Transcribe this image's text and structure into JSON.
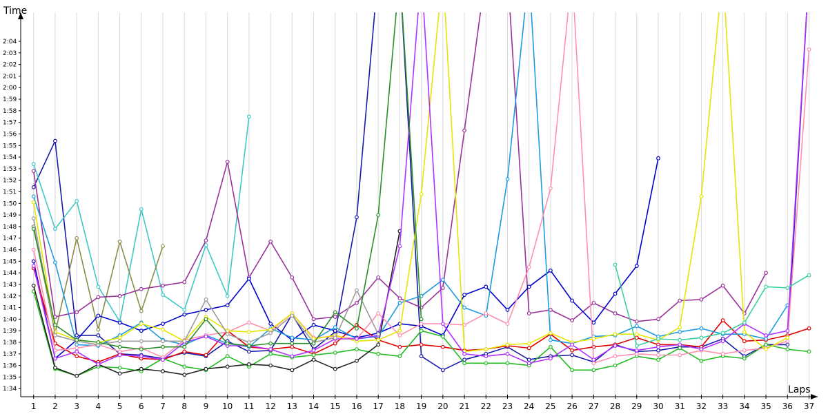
{
  "chart_data": {
    "type": "line",
    "ylabel": "Time",
    "xlabel": "Laps",
    "x": [
      1,
      2,
      3,
      4,
      5,
      6,
      7,
      8,
      9,
      10,
      11,
      12,
      13,
      14,
      15,
      16,
      17,
      18,
      19,
      20,
      21,
      22,
      23,
      24,
      25,
      26,
      27,
      28,
      29,
      30,
      31,
      32,
      33,
      34,
      35,
      36,
      37
    ],
    "x_tick_labels": [
      "1",
      "2",
      "3",
      "4",
      "5",
      "6",
      "7",
      "8",
      "9",
      "10",
      "11",
      "12",
      "13",
      "14",
      "15",
      "16",
      "17",
      "18",
      "19",
      "20",
      "21",
      "22",
      "23",
      "24",
      "25",
      "26",
      "27",
      "28",
      "29",
      "30",
      "31",
      "32",
      "33",
      "34",
      "35",
      "36",
      "37"
    ],
    "y_tick_labels": [
      "1:34",
      "1:35",
      "1:36",
      "1:37",
      "1:38",
      "1:39",
      "1:40",
      "1:41",
      "1:42",
      "1:43",
      "1:44",
      "1:45",
      "1:46",
      "1:47",
      "1:48",
      "1:49",
      "1:50",
      "1:51",
      "1:52",
      "1:53",
      "1:54",
      "1:55",
      "1:56",
      "1:57",
      "1:58",
      "1:59",
      "2:00",
      "2:01",
      "2:02",
      "2:03",
      "2:04"
    ],
    "y_tick_seconds": [
      94,
      95,
      96,
      97,
      98,
      99,
      100,
      101,
      102,
      103,
      104,
      105,
      106,
      107,
      108,
      109,
      110,
      111,
      112,
      113,
      114,
      115,
      116,
      117,
      118,
      119,
      120,
      121,
      122,
      123,
      124
    ],
    "ylim": [
      93.3,
      126.5
    ],
    "xlim": [
      0.4,
      37.4
    ],
    "grid": true,
    "legend": "none",
    "series": [
      {
        "color": "#1a1aa8",
        "values": [
          111.4,
          115.4,
          98.6,
          98.6,
          97.0,
          96.9,
          96.6,
          97.1,
          96.8,
          98.1,
          97.2,
          97.3,
          100.4,
          97.4,
          98.9,
          108.8,
          130,
          130,
          96.8,
          95.6,
          96.5,
          97.0,
          97.6,
          96.5,
          96.8,
          96.9,
          96.3,
          97.8,
          97.2,
          97.3,
          97.6,
          97.6,
          98.3,
          96.8,
          97.8,
          97.8,
          130
        ]
      },
      {
        "color": "#3ec8c8",
        "values": [
          113.4,
          107.8,
          110.2,
          102.8,
          99.8,
          109.5,
          102.1,
          100.8,
          106.4,
          102.0,
          117.5,
          null,
          null,
          null,
          null,
          null,
          null,
          null,
          null,
          null,
          null,
          null,
          null,
          null,
          null,
          null,
          null,
          null,
          null,
          null,
          null,
          null,
          null,
          null,
          null,
          null,
          null
        ]
      },
      {
        "color": "#8b8b4a",
        "values": [
          108.0,
          98.8,
          107.0,
          99.1,
          106.7,
          100.7,
          106.3,
          null,
          null,
          null,
          null,
          null,
          null,
          null,
          null,
          null,
          null,
          null,
          null,
          null,
          null,
          null,
          null,
          null,
          null,
          null,
          null,
          null,
          null,
          null,
          null,
          null,
          null,
          null,
          null,
          null,
          null
        ]
      },
      {
        "color": "#993399",
        "values": [
          112.8,
          100.2,
          100.6,
          101.9,
          102.0,
          102.6,
          102.9,
          103.2,
          106.8,
          113.6,
          103.6,
          106.7,
          103.6,
          100.0,
          100.2,
          101.4,
          103.6,
          101.8,
          101.0,
          102.7,
          116.3,
          130,
          130,
          100.5,
          100.8,
          99.9,
          101.4,
          100.5,
          99.8,
          100.0,
          101.6,
          101.7,
          102.9,
          100.5,
          104.0,
          null,
          null
        ]
      },
      {
        "color": "#0000cc",
        "values": [
          105.0,
          96.6,
          98.2,
          100.3,
          99.7,
          99.0,
          99.6,
          100.4,
          100.8,
          101.2,
          103.5,
          99.6,
          98.2,
          99.5,
          99.0,
          98.4,
          98.8,
          99.6,
          99.4,
          98.6,
          102.1,
          102.8,
          100.8,
          102.8,
          104.2,
          101.6,
          99.7,
          102.2,
          104.6,
          113.9,
          null,
          null,
          null,
          null,
          null,
          null,
          null
        ]
      },
      {
        "color": "#e00000",
        "values": [
          104.4,
          97.9,
          96.8,
          96.3,
          97.0,
          96.6,
          96.5,
          97.2,
          96.9,
          99.0,
          97.6,
          97.4,
          97.6,
          97.0,
          97.9,
          99.5,
          98.2,
          97.6,
          97.8,
          97.6,
          97.3,
          97.4,
          97.7,
          97.5,
          98.7,
          97.3,
          97.6,
          97.8,
          98.4,
          97.8,
          97.8,
          97.6,
          99.9,
          98.1,
          98.2,
          98.6,
          99.2
        ]
      },
      {
        "color": "#22bb22",
        "values": [
          102.4,
          95.7,
          95.1,
          95.9,
          95.8,
          95.5,
          96.6,
          95.9,
          95.6,
          96.8,
          95.9,
          97.0,
          96.7,
          96.9,
          97.1,
          97.4,
          97.0,
          96.8,
          99.0,
          98.5,
          96.2,
          96.2,
          96.2,
          96.0,
          97.6,
          95.6,
          95.6,
          96.0,
          96.8,
          96.5,
          97.5,
          96.4,
          96.8,
          96.6,
          97.8,
          97.4,
          97.2
        ]
      },
      {
        "color": "#222222",
        "values": [
          102.9,
          95.8,
          95.1,
          96.1,
          95.3,
          95.7,
          95.5,
          95.2,
          95.7,
          95.9,
          96.1,
          96.0,
          95.6,
          96.5,
          95.7,
          96.4,
          97.8,
          107.6,
          null,
          null,
          null,
          null,
          null,
          null,
          null,
          null,
          null,
          null,
          null,
          null,
          null,
          null,
          null,
          null,
          null,
          null,
          null
        ]
      },
      {
        "color": "#1e9be0",
        "values": [
          110.6,
          104.9,
          97.8,
          97.7,
          98.6,
          99.7,
          98.2,
          97.8,
          98.6,
          97.9,
          97.6,
          99.2,
          98.4,
          98.2,
          99.3,
          98.3,
          98.5,
          101.4,
          102.0,
          103.4,
          101.0,
          100.3,
          112.1,
          130,
          98.2,
          97.9,
          98.5,
          98.6,
          99.4,
          98.5,
          98.9,
          99.2,
          98.7,
          98.7,
          98.3,
          101.2,
          null
        ]
      },
      {
        "color": "#ff8fb0",
        "values": [
          106.0,
          97.3,
          97.5,
          97.8,
          97.2,
          97.5,
          96.7,
          98.2,
          98.6,
          98.9,
          99.7,
          99.0,
          100.5,
          98.4,
          98.5,
          98.3,
          100.5,
          98.6,
          99.6,
          99.6,
          99.5,
          100.5,
          99.6,
          104.5,
          111.3,
          130,
          96.2,
          96.8,
          97.0,
          96.9,
          96.9,
          97.3,
          97.0,
          97.3,
          97.5,
          98.1,
          123.3
        ]
      },
      {
        "color": "#e6e600",
        "values": [
          110.1,
          98.9,
          98.2,
          98.0,
          98.4,
          99.6,
          99.1,
          98.1,
          100.2,
          99.0,
          98.9,
          99.1,
          100.5,
          98.3,
          98.6,
          98.1,
          98.2,
          99.0,
          110.8,
          130,
          97.2,
          97.4,
          97.8,
          97.9,
          98.8,
          98.0,
          98.3,
          98.7,
          98.7,
          98.2,
          99.3,
          110.6,
          130,
          98.9,
          97.4,
          98.4,
          null
        ]
      },
      {
        "color": "#b030ff",
        "values": [
          104.6,
          96.6,
          97.2,
          96.1,
          96.9,
          96.8,
          96.5,
          98.0,
          98.5,
          97.7,
          97.7,
          97.4,
          96.8,
          97.3,
          98.3,
          98.3,
          98.6,
          106.3,
          130,
          99.6,
          97.0,
          96.8,
          97.0,
          96.2,
          96.6,
          97.8,
          96.5,
          97.7,
          97.3,
          97.6,
          97.8,
          97.4,
          98.1,
          99.6,
          98.6,
          99.0,
          130
        ]
      },
      {
        "color": "#9b9b9b",
        "values": [
          108.7,
          98.6,
          98.1,
          97.8,
          98.1,
          98.1,
          98.1,
          98.1,
          101.7,
          98.7,
          98.0,
          98.8,
          100.3,
          98.0,
          98.4,
          102.5,
          98.7,
          null,
          null,
          null,
          null,
          null,
          null,
          null,
          null,
          null,
          null,
          null,
          null,
          null,
          null,
          null,
          null,
          null,
          null,
          null,
          null
        ]
      },
      {
        "color": "#2a8f2a",
        "values": [
          107.8,
          99.5,
          98.2,
          98.0,
          97.6,
          97.4,
          97.6,
          97.6,
          100.0,
          97.9,
          97.7,
          97.9,
          97.9,
          97.9,
          100.6,
          99.2,
          109.0,
          130,
          100.0,
          null,
          null,
          null,
          null,
          null,
          null,
          null,
          null,
          null,
          null,
          null,
          null,
          null,
          null,
          null,
          null,
          null,
          null
        ]
      },
      {
        "color": "#3bd0a0",
        "values": [
          null,
          null,
          null,
          null,
          null,
          null,
          null,
          null,
          null,
          null,
          null,
          null,
          null,
          null,
          null,
          null,
          null,
          null,
          null,
          null,
          null,
          null,
          null,
          null,
          null,
          null,
          null,
          104.7,
          97.7,
          98.3,
          98.2,
          98.4,
          98.8,
          99.7,
          102.8,
          102.7,
          103.8
        ]
      }
    ]
  }
}
